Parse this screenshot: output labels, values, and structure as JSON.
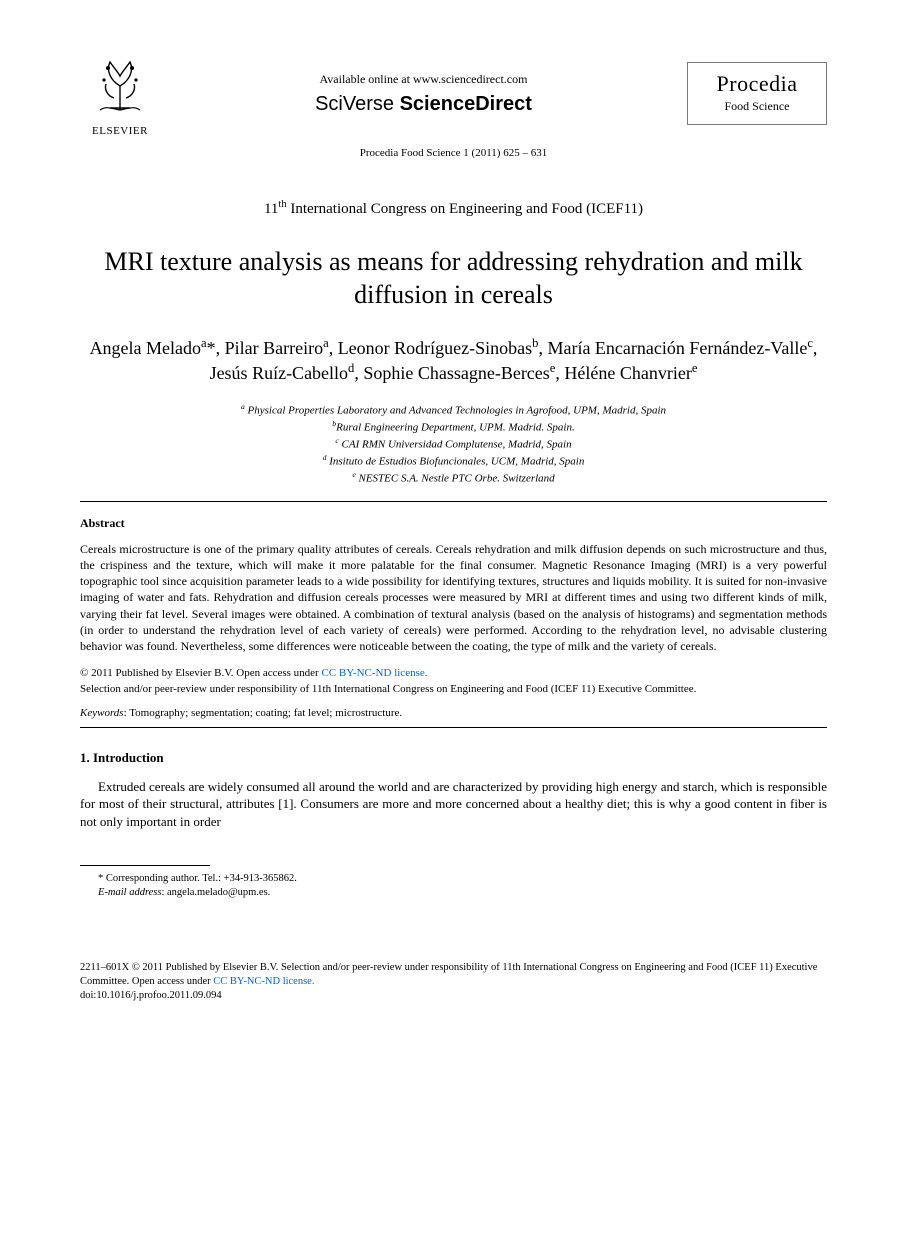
{
  "header": {
    "elsevier_label": "ELSEVIER",
    "available_online": "Available online at www.sciencedirect.com",
    "sciverse_prefix": "SciVerse",
    "sciverse_main": " ScienceDirect",
    "journal_name": "Procedia",
    "journal_sub": "Food Science",
    "citation": "Procedia Food Science 1 (2011) 625 – 631"
  },
  "congress": "11th International Congress on Engineering and Food (ICEF11)",
  "title": "MRI texture analysis as means for addressing rehydration and milk diffusion in cereals",
  "authors_html": "Angela Melado<sup>a</sup>*, Pilar Barreiro<sup>a</sup>, Leonor Rodríguez-Sinobas<sup>b</sup>, María Encarnación Fernández-Valle<sup>c</sup>, Jesús Ruíz-Cabello<sup>d</sup>, Sophie Chassagne-Berces<sup>e</sup>, Héléne Chanvrier<sup>e</sup>",
  "affiliations": [
    "<sup>a</sup> Physical Properties Laboratory and Advanced Technologies in Agrofood, UPM, Madrid, Spain",
    "<sup>b</sup>Rural Engineering Department, UPM. Madrid. Spain.",
    "<sup>c</sup> CAI RMN Universidad Complutense, Madrid, Spain",
    "<sup>d</sup>  Insituto de Estudios Biofuncionales, UCM, Madrid, Spain",
    "<sup>e</sup> NESTEC S.A. Nestle PTC Orbe. Switzerland"
  ],
  "abstract": {
    "heading": "Abstract",
    "text": "Cereals microstructure is one of the primary quality attributes of cereals. Cereals rehydration and milk diffusion depends on such microstructure and thus, the crispiness and the texture, which will make it more palatable for the final consumer. Magnetic Resonance Imaging (MRI) is a very powerful topographic tool since acquisition parameter leads to a wide possibility for identifying textures, structures and liquids mobility. It is suited for non-invasive imaging of water and fats. Rehydration and diffusion cereals processes were measured by MRI at different times and using two different kinds of milk, varying their fat level. Several images were obtained. A combination of textural analysis (based on the analysis of histograms) and segmentation methods (in order to understand the rehydration level of each variety of cereals) were performed. According to the rehydration level, no advisable clustering behavior was found. Nevertheless, some differences were noticeable between the coating, the type of milk and the variety of cereals."
  },
  "copyright": {
    "line1_prefix": "© 2011 Published by Elsevier B.V. ",
    "line1_open": "Open access under ",
    "license_text": "CC BY-NC-ND license.",
    "line2": "Selection and/or peer-review under responsibility of 11th International Congress  on Engineering and Food (ICEF 11) Executive Committee."
  },
  "keywords": {
    "label": "Keywords",
    "text": ": Tomography; segmentation; coating; fat level; microstructure."
  },
  "section1": {
    "heading": "1. Introduction",
    "para": "Extruded cereals are widely consumed all around the world and are characterized by providing high energy and starch, which is responsible for most of their structural, attributes [1]. Consumers are more and more concerned about a healthy diet; this is why a good content in fiber is not only important in order"
  },
  "footnote": {
    "corr": "* Corresponding author. Tel.: +34-913-365862.",
    "email_label": "E-mail address",
    "email": ": angela.melado@upm.es."
  },
  "bottom": {
    "issn_line_prefix": "2211–601X © 2011 Published by Elsevier B.V. Selection and/or peer-review under responsibility of 11th International Congress on Engineering and Food (ICEF 11) Executive Committee. ",
    "open_access": "Open access under ",
    "license_text": "CC BY-NC-ND license.",
    "doi": "doi:10.1016/j.profoo.2011.09.094"
  },
  "colors": {
    "link": "#0066cc",
    "text": "#000000",
    "box_border": "#7a7a7a"
  }
}
